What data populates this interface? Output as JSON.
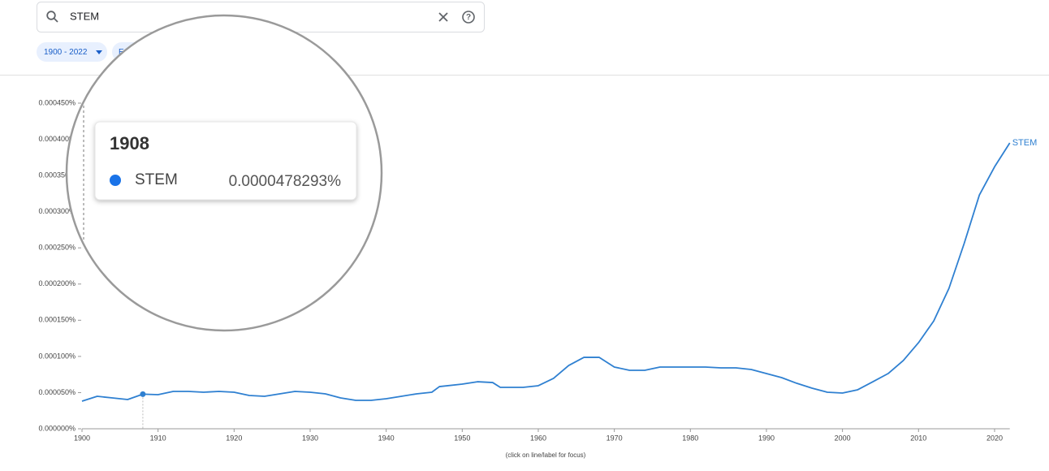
{
  "search": {
    "query": "STEM"
  },
  "filters": [
    "1900 - 2022",
    "E"
  ],
  "tooltip": {
    "year": "1908",
    "series": "STEM",
    "value": "0.0000478293%"
  },
  "chart_data": {
    "type": "line",
    "note": "(click on line/label for focus)",
    "x": [
      1900,
      1902,
      1904,
      1906,
      1908,
      1910,
      1912,
      1914,
      1916,
      1918,
      1920,
      1922,
      1924,
      1926,
      1928,
      1930,
      1932,
      1934,
      1936,
      1938,
      1940,
      1942,
      1944,
      1946,
      1947,
      1950,
      1952,
      1954,
      1955,
      1958,
      1960,
      1962,
      1964,
      1966,
      1968,
      1970,
      1972,
      1974,
      1976,
      1978,
      1980,
      1982,
      1984,
      1986,
      1988,
      1990,
      1992,
      1994,
      1996,
      1998,
      2000,
      2002,
      2004,
      2006,
      2008,
      2010,
      2012,
      2014,
      2016,
      2018,
      2020,
      2022
    ],
    "series": [
      {
        "name": "STEM",
        "color": "#2f80d1",
        "values": [
          3.82e-05,
          4.49e-05,
          4.26e-05,
          4.04e-05,
          4.78293e-05,
          4.71e-05,
          5.16e-05,
          5.16e-05,
          5.05e-05,
          5.16e-05,
          5.05e-05,
          4.6e-05,
          4.49e-05,
          4.83e-05,
          5.16e-05,
          5.05e-05,
          4.83e-05,
          4.26e-05,
          3.93e-05,
          3.93e-05,
          4.15e-05,
          4.49e-05,
          4.83e-05,
          5.05e-05,
          5.83e-05,
          6.17e-05,
          6.5e-05,
          6.39e-05,
          5.72e-05,
          5.72e-05,
          5.95e-05,
          6.96e-05,
          8.75e-05,
          9.87e-05,
          9.87e-05,
          8.53e-05,
          8.08e-05,
          8.08e-05,
          8.53e-05,
          8.53e-05,
          8.53e-05,
          8.53e-05,
          8.42e-05,
          8.42e-05,
          8.19e-05,
          7.63e-05,
          7.07e-05,
          6.28e-05,
          5.61e-05,
          5.05e-05,
          4.94e-05,
          5.39e-05,
          6.5e-05,
          7.63e-05,
          9.43e-05,
          0.000119,
          0.000149,
          0.000194,
          0.000256,
          0.000323,
          0.000362,
          0.000395
        ]
      }
    ],
    "xlim": [
      1900,
      2022
    ],
    "xticks": [
      1900,
      1910,
      1920,
      1930,
      1940,
      1950,
      1960,
      1970,
      1980,
      1990,
      2000,
      2010,
      2020
    ],
    "ylim": [
      0,
      0.00045
    ],
    "yticks": [
      {
        "value": 0,
        "label": "0.000000%"
      },
      {
        "value": 5e-05,
        "label": "0.000050%"
      },
      {
        "value": 0.0001,
        "label": "0.000100%"
      },
      {
        "value": 0.00015,
        "label": "0.000150%"
      },
      {
        "value": 0.0002,
        "label": "0.000200%"
      },
      {
        "value": 0.00025,
        "label": "0.000250%"
      },
      {
        "value": 0.0003,
        "label": "0.000300%"
      },
      {
        "value": 0.00035,
        "label": "0.000350%"
      },
      {
        "value": 0.0004,
        "label": "0.000400%"
      },
      {
        "value": 0.00045,
        "label": "0.000450%"
      }
    ],
    "hover_index": 4
  }
}
